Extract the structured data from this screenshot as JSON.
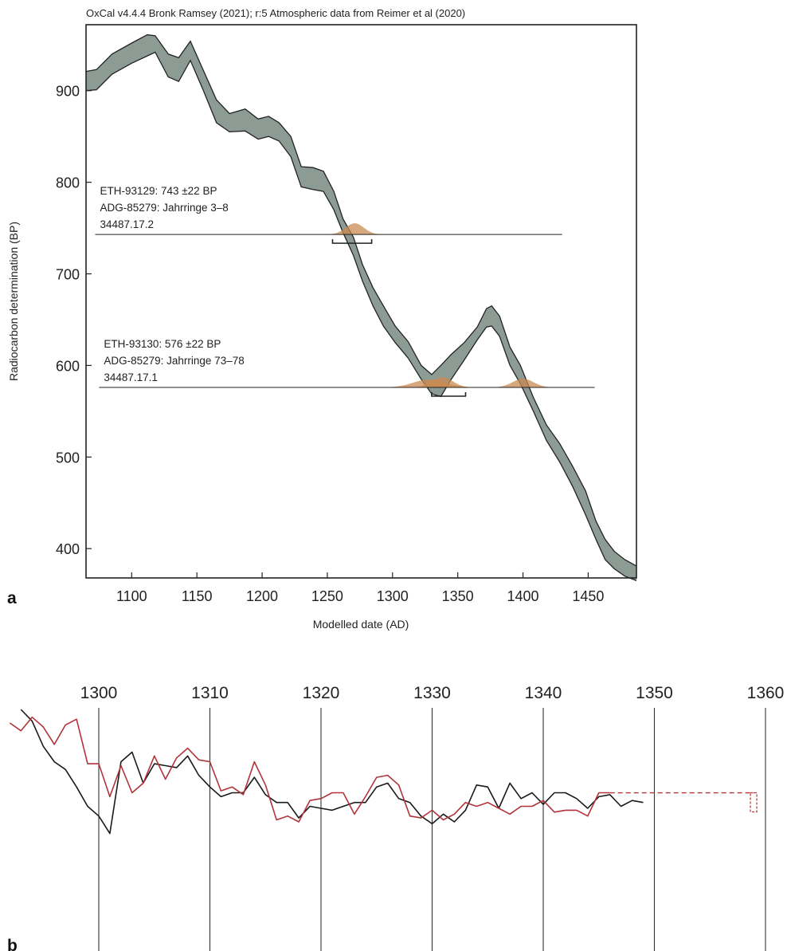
{
  "chart_data": [
    {
      "panel": "a",
      "type": "line",
      "title": "OxCal v4.4.4 Bronk Ramsey (2021); r:5 Atmospheric data from Reimer et al (2020)",
      "xlabel": "Modelled date (AD)",
      "ylabel": "Radiocarbon determination (BP)",
      "xlim": [
        1065,
        1487
      ],
      "ylim": [
        368,
        972
      ],
      "xticks": [
        1100,
        1150,
        1200,
        1250,
        1300,
        1350,
        1400,
        1450
      ],
      "yticks": [
        400,
        500,
        600,
        700,
        800,
        900
      ],
      "grid": false,
      "calibration_band": {
        "x": [
          1065,
          1073,
          1085,
          1100,
          1112,
          1118,
          1128,
          1136,
          1145,
          1155,
          1165,
          1175,
          1187,
          1197,
          1205,
          1213,
          1222,
          1230,
          1239,
          1247,
          1255,
          1262,
          1270,
          1277,
          1285,
          1293,
          1302,
          1312,
          1322,
          1330,
          1337,
          1345,
          1355,
          1365,
          1372,
          1376,
          1382,
          1390,
          1398,
          1408,
          1418,
          1428,
          1438,
          1448,
          1456,
          1463,
          1470,
          1478,
          1487
        ],
        "upper": [
          921,
          923,
          940,
          952,
          961,
          960,
          940,
          936,
          954,
          922,
          890,
          875,
          880,
          869,
          872,
          865,
          850,
          817,
          816,
          812,
          790,
          760,
          740,
          710,
          685,
          665,
          643,
          626,
          600,
          590,
          600,
          612,
          625,
          642,
          662,
          665,
          654,
          620,
          600,
          565,
          535,
          515,
          490,
          463,
          430,
          410,
          397,
          388,
          381
        ],
        "lower": [
          900,
          901,
          918,
          930,
          938,
          942,
          915,
          910,
          933,
          900,
          865,
          855,
          856,
          847,
          850,
          845,
          828,
          795,
          792,
          790,
          770,
          745,
          720,
          692,
          665,
          643,
          625,
          608,
          585,
          569,
          566,
          585,
          606,
          628,
          642,
          643,
          632,
          600,
          580,
          550,
          518,
          495,
          468,
          437,
          410,
          388,
          378,
          370,
          365
        ]
      },
      "annotations": [
        {
          "lines": [
            "ETH-93129: 743 ±22 BP",
            "ADG-85279: Jahrringe 3–8",
            "34487.17.2"
          ],
          "bp": 743,
          "line_x": [
            1072,
            1430
          ],
          "range_x": [
            1254,
            1284
          ],
          "peaks": [
            {
              "center": 1271,
              "sd": 7,
              "height": 14
            }
          ]
        },
        {
          "lines": [
            "ETH-93130: 576 ±22 BP",
            "ADG-85279: Jahrringe 73–78",
            "34487.17.1"
          ],
          "bp": 576,
          "line_x": [
            1075,
            1455
          ],
          "range_x": [
            1330,
            1356
          ],
          "peaks": [
            {
              "center": 1328,
              "sd": 12,
              "height": 10
            },
            {
              "center": 1338,
              "sd": 8,
              "height": 13
            },
            {
              "center": 1400,
              "sd": 8,
              "height": 11
            }
          ]
        }
      ],
      "colors": {
        "band_fill": "#8c9c95",
        "band_edge": "#222222",
        "prob_fill": "#c98a52",
        "axis": "#222222"
      }
    },
    {
      "panel": "b",
      "type": "line",
      "xlim": [
        1292,
        1362
      ],
      "xticks": [
        1300,
        1310,
        1320,
        1330,
        1340,
        1350,
        1360
      ],
      "grid": true,
      "colors": {
        "series_1": "#1a1a1a",
        "series_2": "#b0343a"
      },
      "series": [
        {
          "color": "#1a1a1a",
          "x": [
            1293,
            1294,
            1295,
            1296,
            1297,
            1298,
            1299,
            1300,
            1301,
            1302,
            1303,
            1304,
            1305,
            1306,
            1307,
            1308,
            1309,
            1310,
            1311,
            1312,
            1313,
            1314,
            1315,
            1316,
            1317,
            1318,
            1319,
            1320,
            1321,
            1322,
            1323,
            1324,
            1325,
            1326,
            1327,
            1328,
            1329,
            1330,
            1331,
            1332,
            1333,
            1334,
            1335,
            1336,
            1337,
            1338,
            1339,
            1340,
            1341,
            1342,
            1343,
            1344,
            1345,
            1346,
            1347,
            1348,
            1349
          ],
          "y": [
            72,
            66,
            53,
            45,
            41,
            32,
            22,
            17,
            8,
            45,
            50,
            34,
            44,
            43,
            42,
            48,
            38,
            32,
            27,
            29,
            29,
            37,
            28,
            24,
            24,
            16,
            22,
            21,
            20,
            22,
            24,
            24,
            32,
            34,
            26,
            24,
            17,
            13,
            18,
            14,
            20,
            33,
            32,
            21,
            34,
            26,
            29,
            23,
            29,
            29,
            26,
            21,
            27,
            28,
            22,
            25,
            24
          ]
        },
        {
          "color": "#b0343a",
          "x": [
            1292,
            1293,
            1294,
            1295,
            1296,
            1297,
            1298,
            1299,
            1300,
            1301,
            1302,
            1303,
            1304,
            1305,
            1306,
            1307,
            1308,
            1309,
            1310,
            1311,
            1312,
            1313,
            1314,
            1315,
            1316,
            1317,
            1318,
            1319,
            1320,
            1321,
            1322,
            1323,
            1324,
            1325,
            1326,
            1327,
            1328,
            1329,
            1330,
            1331,
            1332,
            1333,
            1334,
            1335,
            1336,
            1337,
            1338,
            1339,
            1340,
            1341,
            1342,
            1343,
            1344,
            1345,
            1346
          ],
          "y": [
            65,
            61,
            68,
            63,
            54,
            64,
            67,
            44,
            44,
            27,
            43,
            29,
            34,
            48,
            36,
            47,
            52,
            46,
            45,
            30,
            32,
            28,
            45,
            33,
            15,
            17,
            14,
            25,
            26,
            29,
            29,
            18,
            27,
            37,
            38,
            33,
            17,
            16,
            20,
            15,
            18,
            24,
            22,
            24,
            21,
            18,
            22,
            22,
            25,
            19,
            20,
            20,
            17,
            29,
            29
          ]
        }
      ],
      "extension": {
        "color": "#b0343a",
        "from_x": 1346,
        "to_x": 1359,
        "y": 29
      }
    }
  ]
}
